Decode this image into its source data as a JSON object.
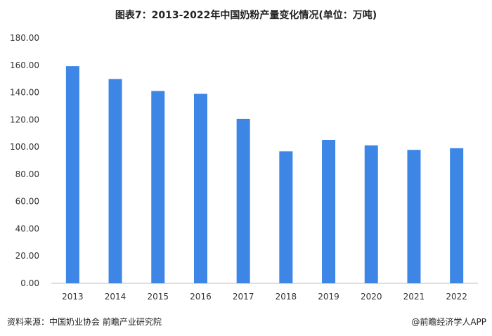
{
  "title": "图表7：2013-2022年中国奶粉产量变化情况(单位：万吨)",
  "footer": {
    "source": "资料来源：中国奶业协会 前瞻产业研究院",
    "credit": "@前瞻经济学人APP"
  },
  "colors": {
    "bar": "#3d86e6",
    "axis": "#bfbfbf"
  },
  "chart_data": {
    "type": "bar",
    "title": "图表7：2013-2022年中国奶粉产量变化情况(单位：万吨)",
    "xlabel": "",
    "ylabel": "",
    "categories": [
      "2013",
      "2014",
      "2015",
      "2016",
      "2017",
      "2018",
      "2019",
      "2020",
      "2021",
      "2022"
    ],
    "series": [
      {
        "values": [
          159.3,
          149.9,
          141.1,
          139.0,
          120.7,
          96.8,
          105.2,
          101.2,
          97.9,
          99.1
        ]
      }
    ],
    "ylim": [
      0,
      180
    ],
    "yticks": [
      "0.00",
      "20.00",
      "40.00",
      "60.00",
      "80.00",
      "100.00",
      "120.00",
      "140.00",
      "160.00",
      "180.00"
    ],
    "grid": false,
    "legend": "none"
  }
}
